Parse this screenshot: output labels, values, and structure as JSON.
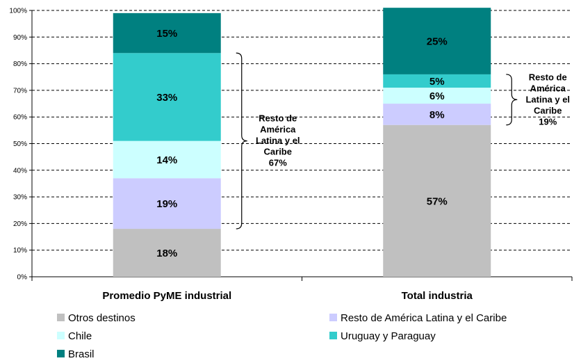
{
  "chart_data": {
    "type": "bar",
    "stacked": true,
    "percent_axis": true,
    "ylim": [
      0,
      100
    ],
    "yticks": [
      "0%",
      "10%",
      "20%",
      "30%",
      "40%",
      "50%",
      "60%",
      "70%",
      "80%",
      "90%",
      "100%"
    ],
    "grid": "dashed horizontal",
    "categories": [
      "Promedio PyME industrial",
      "Total industria"
    ],
    "series": [
      {
        "name": "Otros destinos",
        "values": [
          18,
          57
        ],
        "labels": [
          "18%",
          "57%"
        ],
        "color": "#C0C0C0"
      },
      {
        "name": "Resto de América Latina y el Caribe",
        "values": [
          19,
          8
        ],
        "labels": [
          "19%",
          "8%"
        ],
        "color": "#CCCCFF"
      },
      {
        "name": "Chile",
        "values": [
          14,
          6
        ],
        "labels": [
          "14%",
          "6%"
        ],
        "color": "#CCFFFF"
      },
      {
        "name": "Uruguay y Paraguay",
        "values": [
          33,
          5
        ],
        "labels": [
          "33%",
          "5%"
        ],
        "color": "#33CCCC"
      },
      {
        "name": "Brasil",
        "values": [
          15,
          25
        ],
        "labels": [
          "15%",
          "25%"
        ],
        "color": "#008080"
      }
    ],
    "annotations": [
      {
        "category": "Promedio PyME industrial",
        "lines": [
          "Resto de",
          "América",
          "Latina y el",
          "Caribe",
          "67%"
        ],
        "from_series": 1,
        "to_series": 3
      },
      {
        "category": "Total industria",
        "lines": [
          "Resto de",
          "América",
          "Latina y el",
          "Caribe",
          "19%"
        ],
        "from_series": 1,
        "to_series": 3
      }
    ],
    "legend_position": "bottom"
  }
}
